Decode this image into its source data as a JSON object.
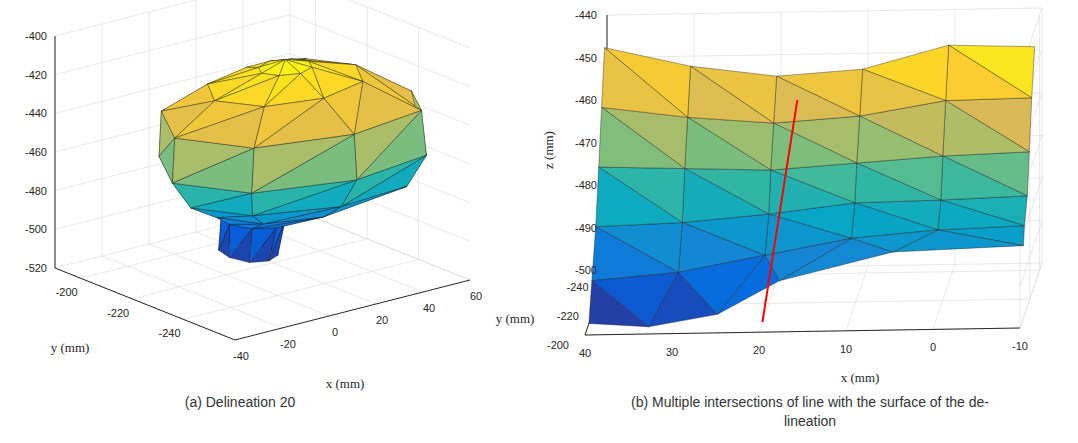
{
  "chart_data": [
    {
      "type": "mesh3d",
      "caption": [
        "(a) Delineation 20"
      ],
      "x_label": "x (mm)",
      "y_label": "y (mm)",
      "xlim": [
        -40,
        60
      ],
      "ylim": [
        -260,
        -190
      ],
      "zlim": [
        -520,
        -400
      ],
      "xticks": [
        -40,
        -20,
        0,
        20,
        40,
        60
      ],
      "yticks": [
        -240,
        -220,
        -200
      ],
      "zticks": [
        -520,
        -500,
        -480,
        -460,
        -440,
        -420,
        -400
      ],
      "grid": true,
      "surface": [
        [
          [
            13,
            -224,
            -508
          ],
          [
            11,
            -218,
            -508
          ],
          [
            5,
            -216,
            -508
          ],
          [
            -1,
            -218,
            -508
          ],
          [
            -3,
            -224,
            -508
          ],
          [
            -1,
            -230,
            -508
          ],
          [
            5,
            -232,
            -508
          ],
          [
            11,
            -230,
            -508
          ],
          [
            13,
            -224,
            -508
          ]
        ],
        [
          [
            16,
            -225,
            -490
          ],
          [
            13,
            -219,
            -490
          ],
          [
            6,
            -216,
            -490
          ],
          [
            -1,
            -219,
            -490
          ],
          [
            -4,
            -225,
            -490
          ],
          [
            -1,
            -231,
            -490
          ],
          [
            6,
            -234,
            -490
          ],
          [
            13,
            -231,
            -490
          ],
          [
            16,
            -225,
            -490
          ]
        ],
        [
          [
            43,
            -228,
            -482
          ],
          [
            35,
            -217,
            -482
          ],
          [
            15,
            -212,
            -482
          ],
          [
            -5,
            -217,
            -482
          ],
          [
            -13,
            -228,
            -482
          ],
          [
            -5,
            -239,
            -482
          ],
          [
            15,
            -244,
            -482
          ],
          [
            35,
            -239,
            -482
          ],
          [
            43,
            -228,
            -482
          ]
        ],
        [
          [
            50,
            -236,
            -472
          ],
          [
            39,
            -216,
            -472
          ],
          [
            12,
            -210,
            -472
          ],
          [
            -15,
            -216,
            -472
          ],
          [
            -26,
            -230,
            -472
          ],
          [
            -15,
            -244,
            -472
          ],
          [
            14,
            -252,
            -472
          ],
          [
            44,
            -250,
            -472
          ],
          [
            50,
            -236,
            -472
          ]
        ],
        [
          [
            58,
            -240,
            -455
          ],
          [
            44,
            -218,
            -455
          ],
          [
            10,
            -208,
            -455
          ],
          [
            -22,
            -214,
            -455
          ],
          [
            -36,
            -232,
            -455
          ],
          [
            -22,
            -250,
            -455
          ],
          [
            14,
            -258,
            -455
          ],
          [
            48,
            -254,
            -455
          ],
          [
            58,
            -240,
            -455
          ]
        ],
        [
          [
            57,
            -240,
            -432
          ],
          [
            43,
            -218,
            -432
          ],
          [
            10,
            -208,
            -432
          ],
          [
            -21,
            -214,
            -432
          ],
          [
            -35,
            -232,
            -432
          ],
          [
            -21,
            -250,
            -432
          ],
          [
            14,
            -257,
            -432
          ],
          [
            47,
            -253,
            -432
          ],
          [
            57,
            -240,
            -432
          ]
        ],
        [
          [
            42,
            -232,
            -418
          ],
          [
            33,
            -221,
            -418
          ],
          [
            12,
            -217,
            -418
          ],
          [
            -9,
            -221,
            -418
          ],
          [
            -18,
            -232,
            -418
          ],
          [
            -9,
            -243,
            -418
          ],
          [
            12,
            -247,
            -418
          ],
          [
            33,
            -243,
            -418
          ],
          [
            42,
            -232,
            -418
          ]
        ],
        [
          [
            22,
            -232,
            -410
          ],
          [
            19,
            -228,
            -410
          ],
          [
            12,
            -226,
            -410
          ],
          [
            5,
            -228,
            -410
          ],
          [
            2,
            -232,
            -410
          ],
          [
            5,
            -236,
            -410
          ],
          [
            12,
            -238,
            -410
          ],
          [
            19,
            -236,
            -410
          ],
          [
            22,
            -232,
            -410
          ]
        ],
        [
          [
            12,
            -232,
            -406
          ],
          [
            12,
            -232,
            -406
          ],
          [
            12,
            -232,
            -406
          ],
          [
            12,
            -232,
            -406
          ],
          [
            12,
            -232,
            -406
          ],
          [
            12,
            -232,
            -406
          ],
          [
            12,
            -232,
            -406
          ],
          [
            12,
            -232,
            -406
          ],
          [
            12,
            -232,
            -406
          ]
        ]
      ]
    },
    {
      "type": "mesh3d",
      "caption": [
        "(b) Multiple intersections of line with the surface of the de-",
        "lineation"
      ],
      "x_label": "x (mm)",
      "y_label": "y (mm)",
      "z_label": "z (mm)",
      "xlim": [
        -10,
        40
      ],
      "ylim": [
        -245,
        -200
      ],
      "zlim": [
        -500,
        -440
      ],
      "xticks": [
        40,
        30,
        20,
        10,
        0,
        -10
      ],
      "yticks": [
        -240,
        -220,
        -200
      ],
      "zticks": [
        -500,
        -490,
        -480,
        -470,
        -460,
        -450,
        -440
      ],
      "grid": true,
      "surface": [
        [
          [
            40,
            -240,
            -446
          ],
          [
            30,
            -238,
            -450
          ],
          [
            20,
            -236,
            -452
          ],
          [
            10,
            -234,
            -450
          ],
          [
            0,
            -232,
            -444
          ],
          [
            -10,
            -230,
            -444
          ]
        ],
        [
          [
            40,
            -234,
            -458
          ],
          [
            30,
            -232,
            -460
          ],
          [
            20,
            -230,
            -461
          ],
          [
            10,
            -228,
            -459
          ],
          [
            0,
            -226,
            -455
          ],
          [
            -10,
            -224,
            -454
          ]
        ],
        [
          [
            40,
            -228,
            -470
          ],
          [
            30,
            -226,
            -470
          ],
          [
            20,
            -224,
            -470
          ],
          [
            10,
            -222,
            -468
          ],
          [
            0,
            -220,
            -466
          ],
          [
            -10,
            -219,
            -465
          ]
        ],
        [
          [
            40,
            -222,
            -482
          ],
          [
            30,
            -221,
            -481
          ],
          [
            20,
            -220,
            -479
          ],
          [
            10,
            -218,
            -476
          ],
          [
            0,
            -216,
            -475
          ],
          [
            -10,
            -215,
            -474
          ]
        ],
        [
          [
            40,
            -214,
            -492
          ],
          [
            30,
            -213,
            -490
          ],
          [
            20,
            -212,
            -486
          ],
          [
            10,
            -211,
            -482
          ],
          [
            0,
            -210,
            -480
          ],
          [
            -10,
            -209,
            -479
          ]
        ],
        [
          [
            40,
            -208,
            -500
          ],
          [
            33,
            -205,
            -500
          ],
          [
            25,
            -204,
            -497
          ],
          [
            18,
            -206,
            -490
          ],
          [
            5,
            -207,
            -484
          ],
          [
            -10,
            -207,
            -483
          ]
        ]
      ],
      "lines": [
        {
          "color": "#ff0000",
          "points": [
            [
              20,
              -207,
              -500
            ],
            [
              17,
              -225,
              -454
            ]
          ]
        }
      ]
    }
  ]
}
